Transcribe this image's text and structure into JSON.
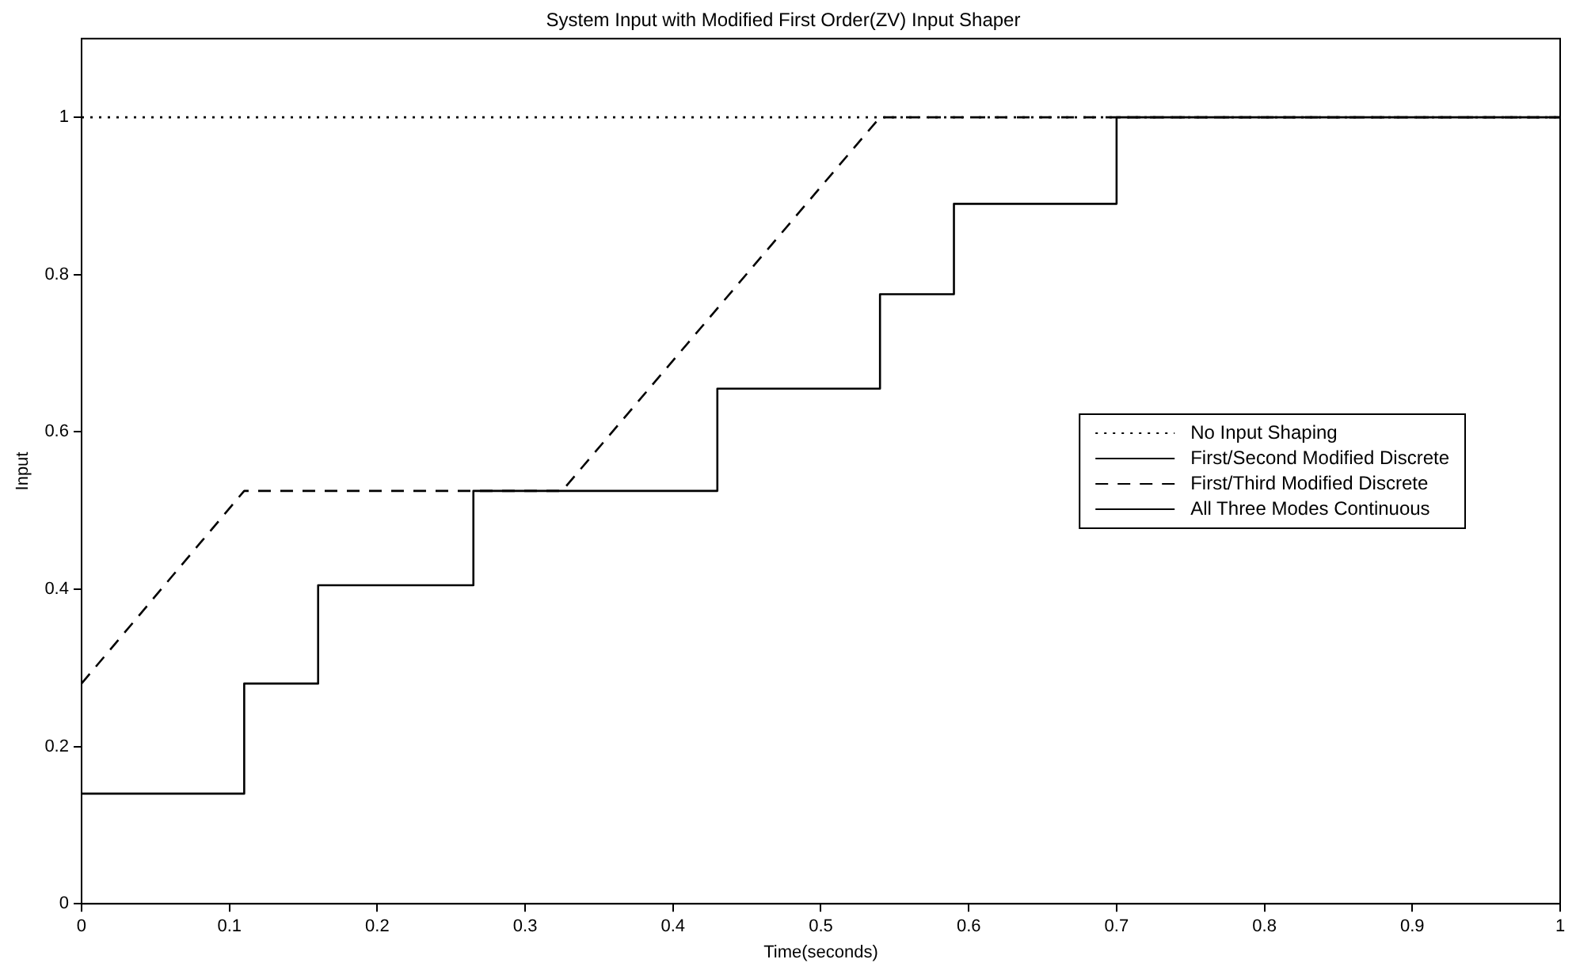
{
  "chart_data": {
    "type": "line",
    "title": "System Input with Modified First Order(ZV) Input Shaper",
    "xlabel": "Time(seconds)",
    "ylabel": "Input",
    "xlim": [
      0,
      1
    ],
    "xticks": [
      0,
      0.1,
      0.2,
      0.3,
      0.4,
      0.5,
      0.6,
      0.7,
      0.8,
      0.9,
      1
    ],
    "ylim": [
      0,
      1.1
    ],
    "yticks": [
      0,
      0.2,
      0.4,
      0.6,
      0.8,
      1
    ],
    "grid": false,
    "legend": "right",
    "marker": "none",
    "series": [
      {
        "name": "No Input Shaping",
        "type": "line",
        "line_style": "dotted",
        "color": "#000000",
        "x": [
          0,
          1
        ],
        "values": [
          1,
          1
        ]
      },
      {
        "name": "First/Second Modified Discrete",
        "type": "step",
        "line_style": "solid",
        "color": "#000000",
        "x": [
          0,
          0.11,
          0.16,
          0.265,
          0.43,
          0.54,
          0.59,
          0.7,
          1
        ],
        "values": [
          0.14,
          0.28,
          0.405,
          0.525,
          0.655,
          0.775,
          0.89,
          1,
          1
        ]
      },
      {
        "name": "First/Third Modified Discrete",
        "type": "line",
        "line_style": "dashed",
        "color": "#000000",
        "x": [
          0,
          0.11,
          0.325,
          0.54,
          1
        ],
        "values": [
          0.28,
          0.525,
          0.525,
          1,
          1
        ]
      },
      {
        "name": "All Three Modes Continuous",
        "type": "line",
        "line_style": "solid",
        "color": "#000000"
      }
    ]
  }
}
